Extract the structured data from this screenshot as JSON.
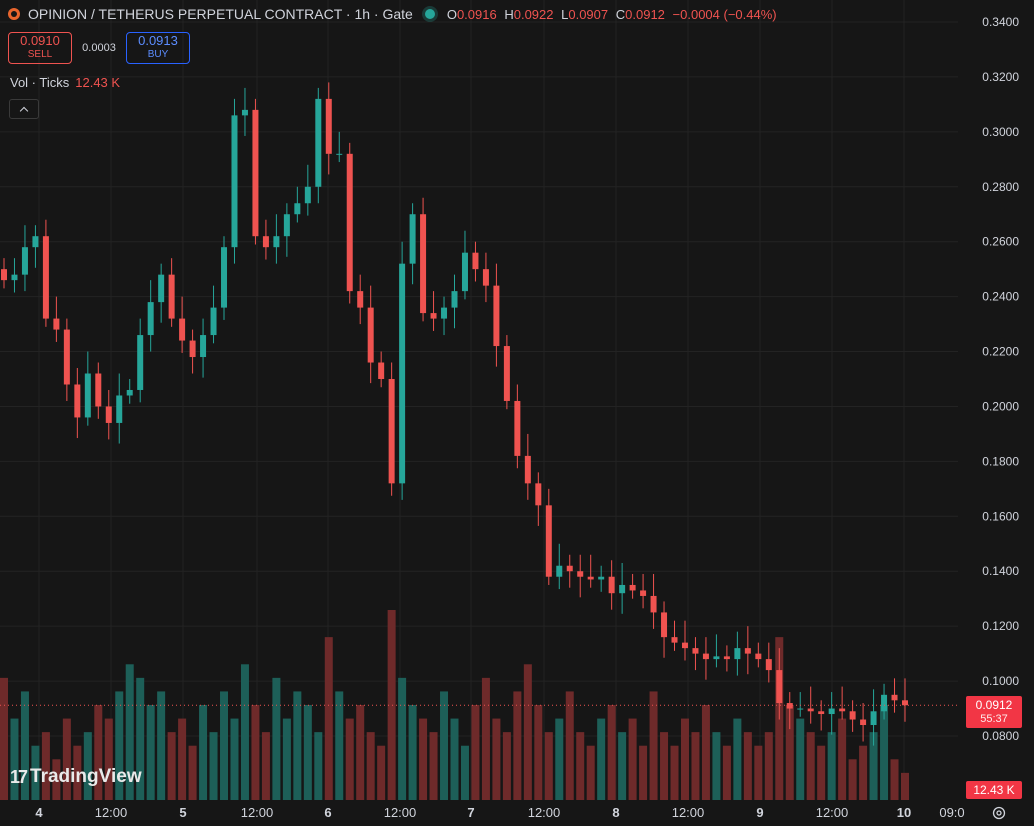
{
  "header": {
    "symbol_title": "OPINION / TETHERUS PERPETUAL CONTRACT · 1h · Gate",
    "ohlc": {
      "o_label": "O",
      "o": "0.0916",
      "h_label": "H",
      "h": "0.0922",
      "l_label": "L",
      "l": "0.0907",
      "c_label": "C",
      "c": "0.0912",
      "change": "−0.0004 (−0.44%)"
    },
    "logo_icon": "exchange-logo-icon",
    "status_icon": "market-open-dot-icon"
  },
  "trade": {
    "sell_price": "0.0910",
    "sell_label": "SELL",
    "spread": "0.0003",
    "buy_price": "0.0913",
    "buy_label": "BUY"
  },
  "volume_legend": {
    "label": "Vol · Ticks",
    "value": "12.43 K"
  },
  "brand": {
    "mark": "17",
    "name": "TradingView"
  },
  "price_axis": {
    "ticks": [
      "0.3400",
      "0.3200",
      "0.3000",
      "0.2800",
      "0.2600",
      "0.2400",
      "0.2200",
      "0.2000",
      "0.1800",
      "0.1600",
      "0.1400",
      "0.1200",
      "0.1000",
      "0.0800"
    ],
    "current_price": "0.0912",
    "countdown": "55:37",
    "volume_value": "12.43 K"
  },
  "time_axis": {
    "labels": [
      "4",
      "12:00",
      "5",
      "12:00",
      "6",
      "12:00",
      "7",
      "12:00",
      "8",
      "12:00",
      "9",
      "12:00",
      "10",
      "09:0"
    ]
  },
  "colors": {
    "up": "#26a69a",
    "down": "#ef5350",
    "up_vol": "#1d5f58",
    "down_vol": "#6e2a2a",
    "background": "#161616",
    "grid": "#232323"
  },
  "chart_data": {
    "type": "candlestick",
    "timeframe": "1h",
    "y_axis": {
      "min": 0.08,
      "max": 0.34,
      "step": 0.02
    },
    "x_axis_days": [
      "4",
      "5",
      "6",
      "7",
      "8",
      "9",
      "10"
    ],
    "close_series": [
      0.246,
      0.248,
      0.258,
      0.262,
      0.232,
      0.228,
      0.208,
      0.196,
      0.212,
      0.2,
      0.194,
      0.204,
      0.206,
      0.226,
      0.238,
      0.248,
      0.232,
      0.224,
      0.218,
      0.226,
      0.236,
      0.258,
      0.306,
      0.308,
      0.262,
      0.258,
      0.262,
      0.27,
      0.274,
      0.28,
      0.312,
      0.292,
      0.292,
      0.242,
      0.236,
      0.216,
      0.21,
      0.172,
      0.252,
      0.27,
      0.234,
      0.232,
      0.236,
      0.242,
      0.256,
      0.25,
      0.244,
      0.222,
      0.202,
      0.182,
      0.172,
      0.164,
      0.138,
      0.142,
      0.14,
      0.138,
      0.137,
      0.138,
      0.132,
      0.135,
      0.133,
      0.131,
      0.125,
      0.116,
      0.114,
      0.112,
      0.11,
      0.108,
      0.109,
      0.108,
      0.112,
      0.11,
      0.108,
      0.104,
      0.092,
      0.09,
      0.09,
      0.089,
      0.088,
      0.09,
      0.089,
      0.086,
      0.084,
      0.089,
      0.095,
      0.093,
      0.0912
    ],
    "volume_series": [
      9,
      6,
      8,
      4,
      5,
      3,
      6,
      4,
      5,
      7,
      6,
      8,
      10,
      9,
      7,
      8,
      5,
      6,
      4,
      7,
      5,
      8,
      6,
      10,
      7,
      5,
      9,
      6,
      8,
      7,
      5,
      12,
      8,
      6,
      7,
      5,
      4,
      14,
      9,
      7,
      6,
      5,
      8,
      6,
      4,
      7,
      9,
      6,
      5,
      8,
      10,
      7,
      5,
      6,
      8,
      5,
      4,
      6,
      7,
      5,
      6,
      4,
      8,
      5,
      4,
      6,
      5,
      7,
      5,
      4,
      6,
      5,
      4,
      5,
      12,
      7,
      6,
      5,
      4,
      5,
      6,
      3,
      4,
      5,
      7,
      3,
      2
    ],
    "current_price": 0.0912,
    "current_volume": "12.43 K"
  }
}
